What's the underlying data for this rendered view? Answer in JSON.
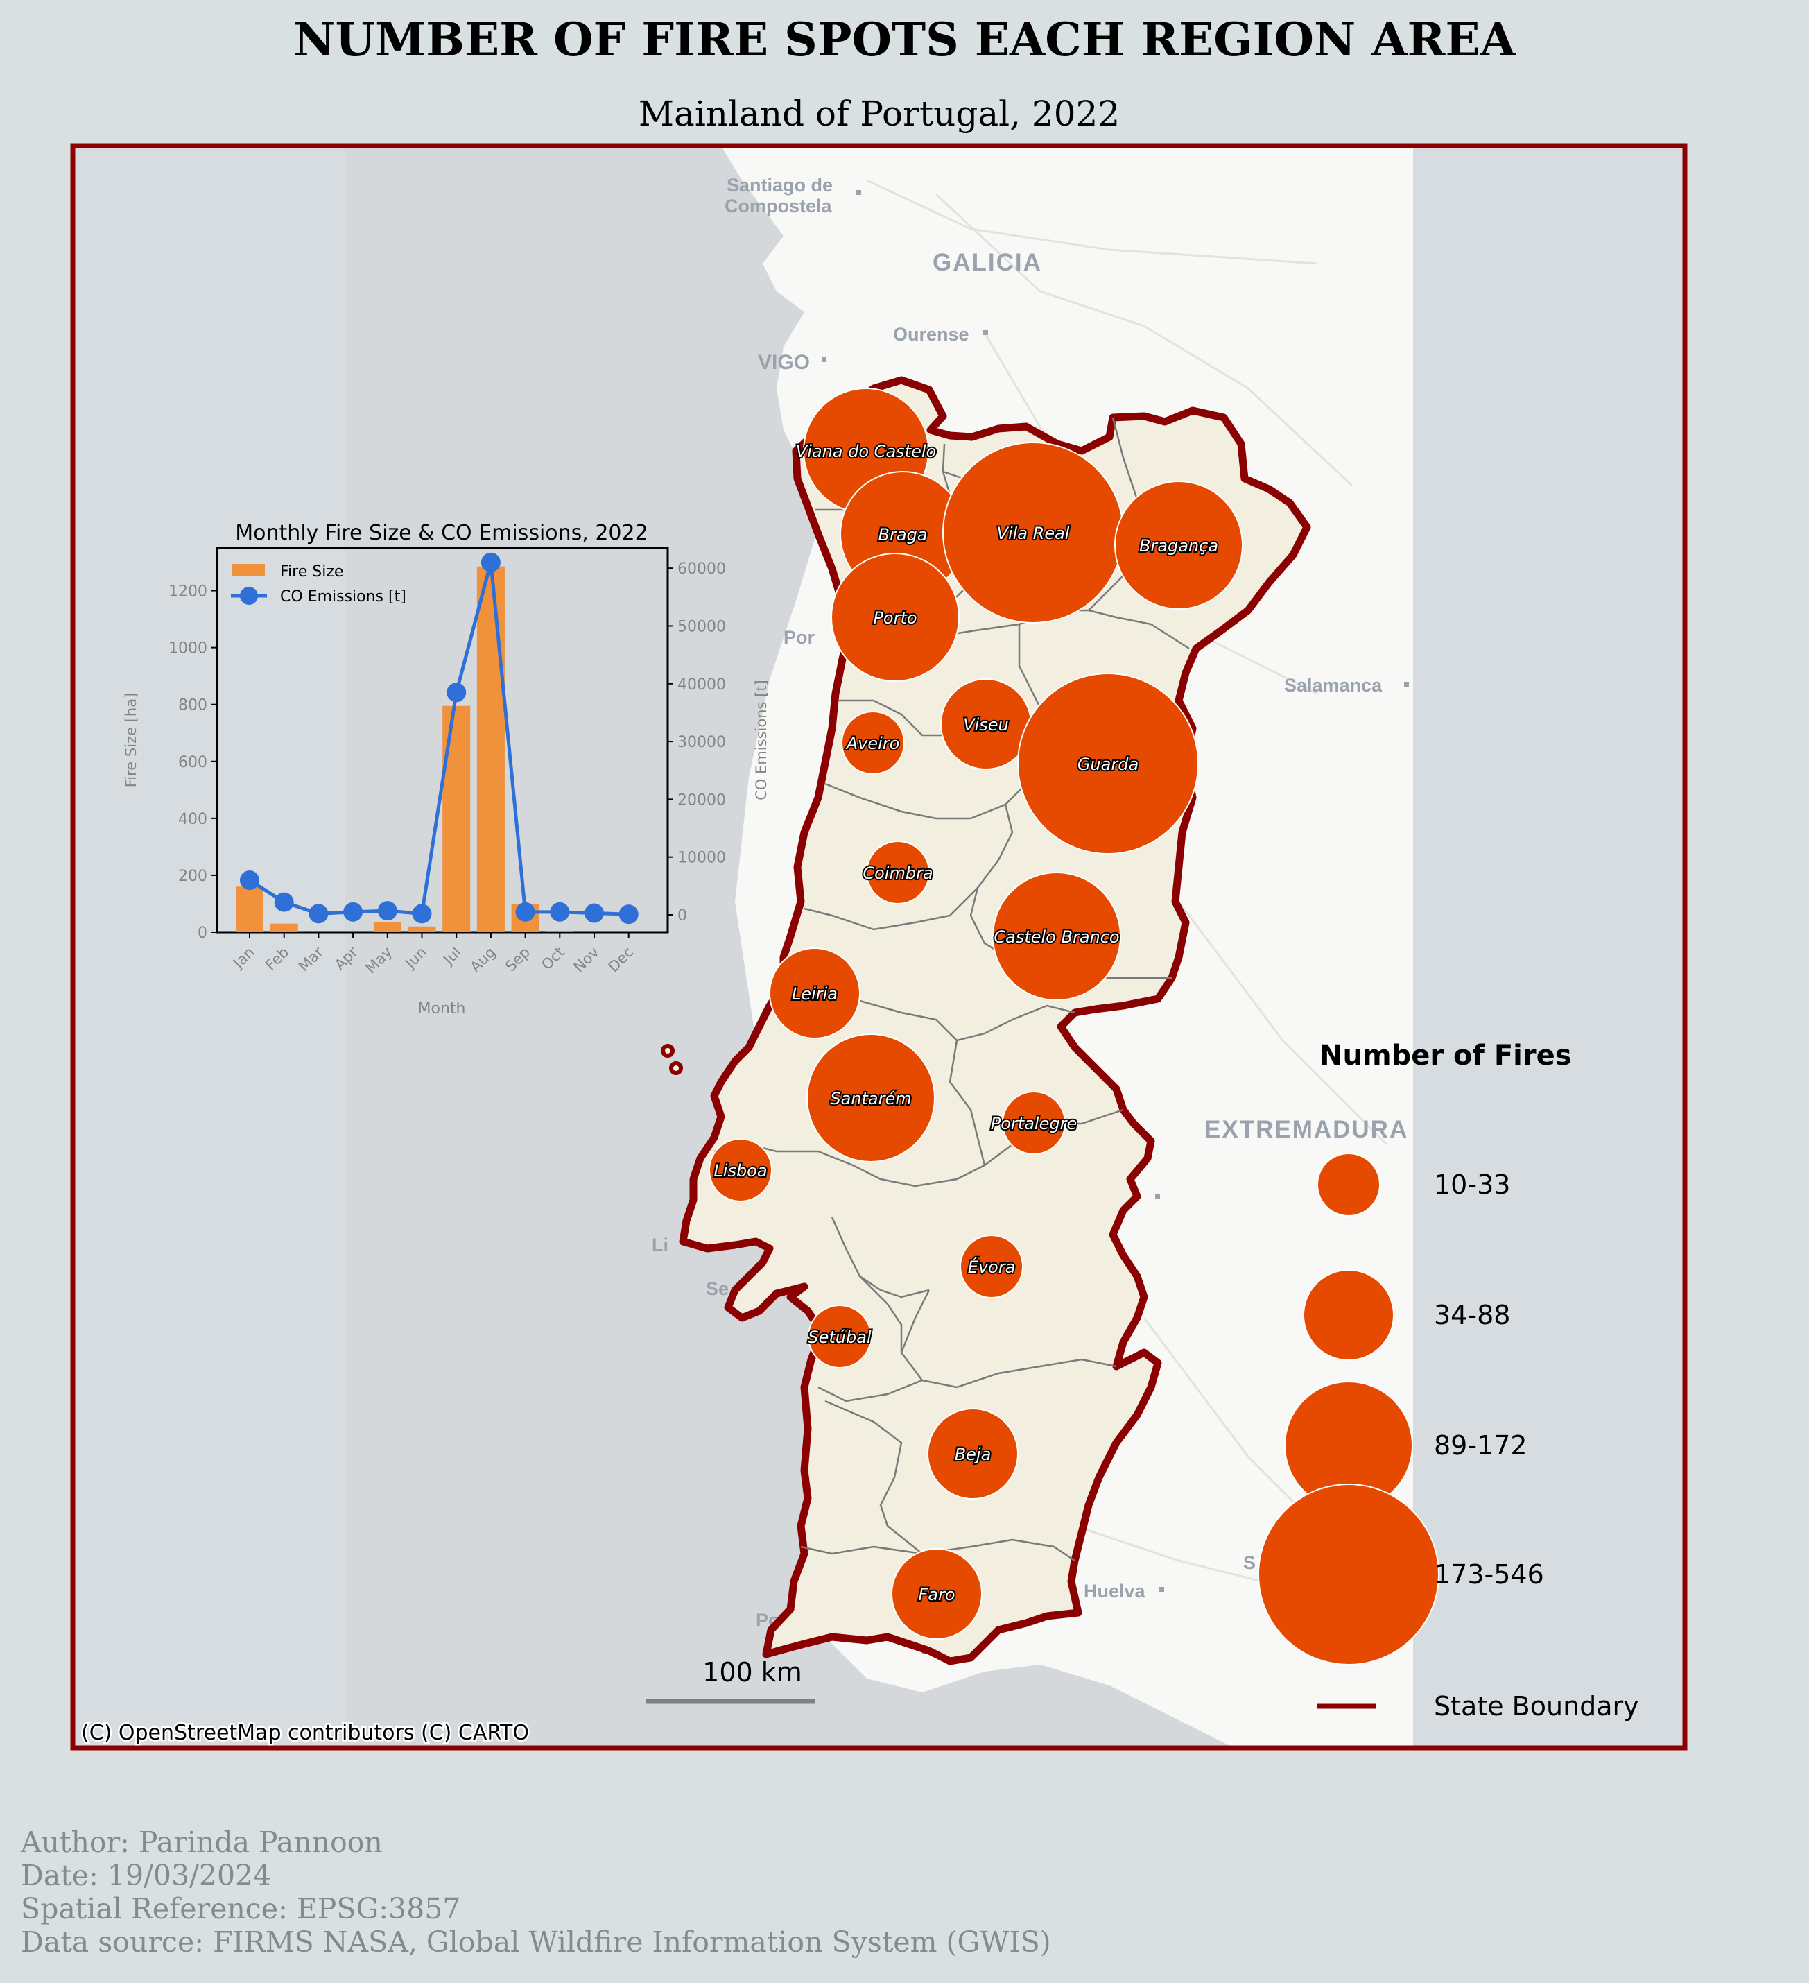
{
  "title": "NUMBER OF FIRE SPOTS EACH REGION AREA",
  "subtitle": "Mainland of Portugal, 2022",
  "colors": {
    "bubble": "#e64a00",
    "boundary": "#8b0000",
    "land": "#f2efe0",
    "sea": "#d4d8db",
    "bar": "#f0913c",
    "line": "#2e6fd8"
  },
  "basemap_labels": [
    {
      "text": "Santiago de",
      "size": "small"
    },
    {
      "text": "Compostela",
      "size": "small"
    },
    {
      "text": "GALICIA",
      "size": "large"
    },
    {
      "text": "Ourense",
      "size": "small"
    },
    {
      "text": "VIGO",
      "size": "medium"
    },
    {
      "text": "Salamanca",
      "size": "small"
    },
    {
      "text": "EXTREMADURA",
      "size": "large"
    },
    {
      "text": "Huelva",
      "size": "small"
    },
    {
      "text": "Por",
      "size": "small"
    },
    {
      "text": "Li",
      "size": "small"
    },
    {
      "text": "Se",
      "size": "small"
    },
    {
      "text": "Po",
      "size": "small"
    },
    {
      "text": "Fa",
      "size": "small"
    },
    {
      "text": "S",
      "size": "small"
    }
  ],
  "regions": [
    {
      "name": "Viana do Castelo",
      "class": "34-88"
    },
    {
      "name": "Braga",
      "class": "34-88"
    },
    {
      "name": "Vila Real",
      "class": "173-546"
    },
    {
      "name": "Bragança",
      "class": "89-172"
    },
    {
      "name": "Porto",
      "class": "89-172"
    },
    {
      "name": "Viseu",
      "class": "34-88"
    },
    {
      "name": "Aveiro",
      "class": "10-33"
    },
    {
      "name": "Guarda",
      "class": "173-546"
    },
    {
      "name": "Coimbra",
      "class": "10-33"
    },
    {
      "name": "Castelo Branco",
      "class": "89-172"
    },
    {
      "name": "Leiria",
      "class": "34-88"
    },
    {
      "name": "Santarém",
      "class": "89-172"
    },
    {
      "name": "Portalegre",
      "class": "10-33"
    },
    {
      "name": "Lisboa",
      "class": "10-33"
    },
    {
      "name": "Évora",
      "class": "10-33"
    },
    {
      "name": "Setúbal",
      "class": "10-33"
    },
    {
      "name": "Beja",
      "class": "34-88"
    },
    {
      "name": "Faro",
      "class": "34-88"
    }
  ],
  "legend": {
    "title": "Number of Fires",
    "classes": [
      "10-33",
      "34-88",
      "89-172",
      "173-546"
    ],
    "boundary_label": "State Boundary"
  },
  "scalebar": {
    "label": "100 km"
  },
  "attribution": "(C) OpenStreetMap contributors (C) CARTO",
  "chart_data": {
    "type": "bar",
    "title": "Monthly Fire Size & CO Emissions, 2022",
    "categories": [
      "Jan",
      "Feb",
      "Mar",
      "Apr",
      "May",
      "Jun",
      "Jul",
      "Aug",
      "Sep",
      "Oct",
      "Nov",
      "Dec"
    ],
    "xlabel": "Month",
    "ylabel": "Fire Size [ha]",
    "y2label": "CO Emissions [t]",
    "ylim": [
      0,
      1350
    ],
    "y2lim": [
      -3000,
      63500
    ],
    "yticks": [
      0,
      200,
      400,
      600,
      800,
      1000,
      1200
    ],
    "y2ticks": [
      0,
      10000,
      20000,
      30000,
      40000,
      50000,
      60000
    ],
    "legend_position": "top-left",
    "series": [
      {
        "name": "Fire Size",
        "type": "bar",
        "axis": "left",
        "values": [
          160,
          30,
          2,
          2,
          35,
          20,
          795,
          1285,
          100,
          3,
          2,
          1
        ]
      },
      {
        "name": "CO Emissions [t]",
        "type": "line",
        "axis": "right",
        "values": [
          6000,
          2200,
          200,
          500,
          700,
          200,
          38500,
          61000,
          500,
          500,
          300,
          100
        ]
      }
    ]
  },
  "footer": {
    "author": "Author: Parinda Pannoon",
    "date": "Date: 19/03/2024",
    "crs": "Spatial Reference: EPSG:3857",
    "source": "Data source: FIRMS NASA, Global Wildfire Information System (GWIS)"
  }
}
